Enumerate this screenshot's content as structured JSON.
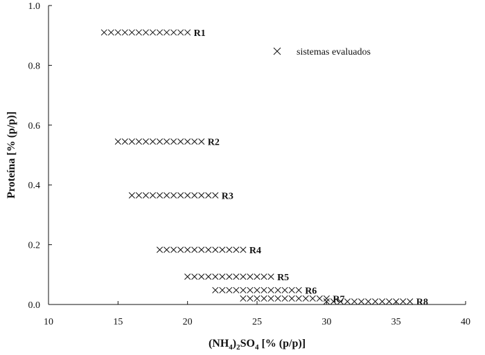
{
  "chart_data": {
    "type": "scatter",
    "title": "",
    "xlabel_parts": [
      "(NH",
      "4",
      ")",
      "2",
      "SO",
      "4",
      " [% (p/p)]"
    ],
    "ylabel": "Proteína [% (p/p)]",
    "xlim": [
      10,
      40
    ],
    "ylim": [
      0,
      1.0
    ],
    "xticks": [
      "10",
      "15",
      "20",
      "25",
      "30",
      "35",
      "40"
    ],
    "yticks": [
      "0.0",
      "0.2",
      "0.4",
      "0.6",
      "0.8",
      "1.0"
    ],
    "grid": false,
    "legend": {
      "label": "sistemas evaluados",
      "marker": "×",
      "placement": "top-right"
    },
    "series": [
      {
        "name": "R1",
        "y": 0.91,
        "x": [
          14,
          14.5,
          15,
          15.5,
          16,
          16.5,
          17,
          17.5,
          18,
          18.5,
          19,
          19.5,
          20
        ]
      },
      {
        "name": "R2",
        "y": 0.545,
        "x": [
          15,
          15.5,
          16,
          16.5,
          17,
          17.5,
          18,
          18.5,
          19,
          19.5,
          20,
          20.5,
          21
        ]
      },
      {
        "name": "R3",
        "y": 0.365,
        "x": [
          16,
          16.5,
          17,
          17.5,
          18,
          18.5,
          19,
          19.5,
          20,
          20.5,
          21,
          21.5,
          22
        ]
      },
      {
        "name": "R4",
        "y": 0.183,
        "x": [
          18,
          18.5,
          19,
          19.5,
          20,
          20.5,
          21,
          21.5,
          22,
          22.5,
          23,
          23.5,
          24
        ]
      },
      {
        "name": "R5",
        "y": 0.093,
        "x": [
          20,
          20.5,
          21,
          21.5,
          22,
          22.5,
          23,
          23.5,
          24,
          24.5,
          25,
          25.5,
          26
        ]
      },
      {
        "name": "R6",
        "y": 0.048,
        "x": [
          22,
          22.5,
          23,
          23.5,
          24,
          24.5,
          25,
          25.5,
          26,
          26.5,
          27,
          27.5,
          28
        ]
      },
      {
        "name": "R7",
        "y": 0.02,
        "x": [
          24,
          24.5,
          25,
          25.5,
          26,
          26.5,
          27,
          27.5,
          28,
          28.5,
          29,
          29.5,
          30
        ]
      },
      {
        "name": "R8",
        "y": 0.01,
        "x": [
          30,
          30.5,
          31,
          31.5,
          32,
          32.5,
          33,
          33.5,
          34,
          34.5,
          35,
          35.5,
          36
        ]
      }
    ]
  }
}
